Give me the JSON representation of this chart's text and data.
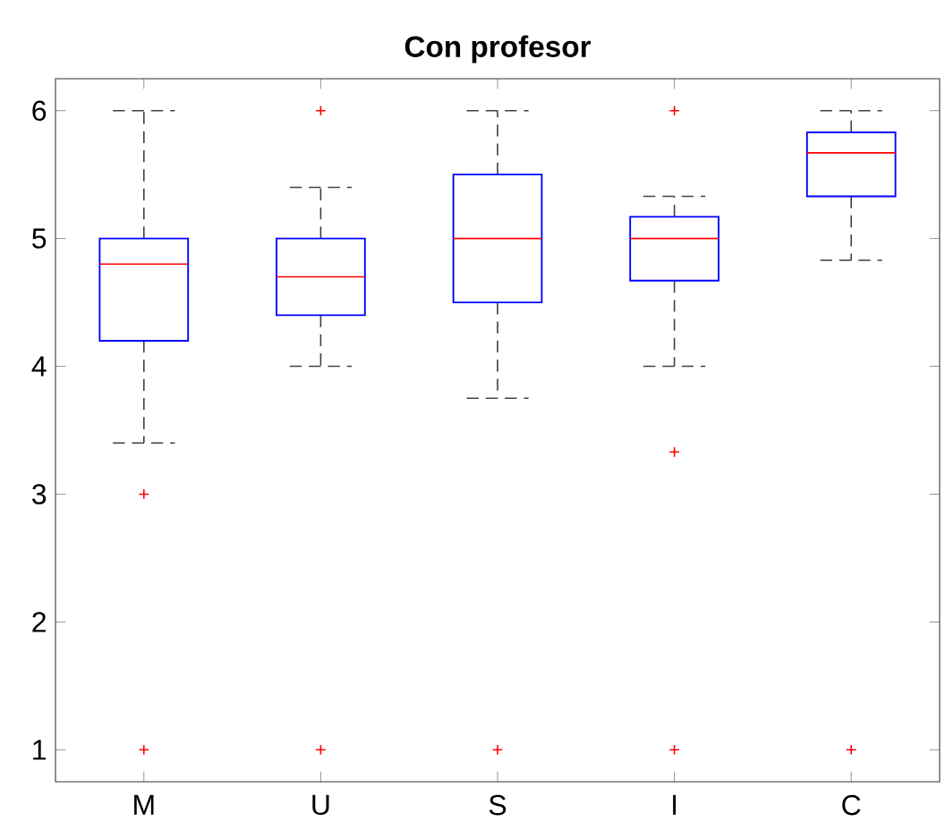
{
  "chart_data": {
    "type": "box",
    "title": "Con profesor",
    "categories": [
      "M",
      "U",
      "S",
      "I",
      "C"
    ],
    "color": "#0000ff",
    "boxes": [
      {
        "low": 3.4,
        "q1": 4.2,
        "median": 4.8,
        "q3": 5,
        "high": 6,
        "outliers": [
          3,
          1
        ]
      },
      {
        "low": 4,
        "q1": 4.4,
        "median": 4.7,
        "q3": 5,
        "high": 5.4,
        "outliers": [
          6,
          1
        ]
      },
      {
        "low": 3.75,
        "q1": 4.5,
        "median": 5,
        "q3": 5.5,
        "high": 6,
        "outliers": [
          1
        ]
      },
      {
        "low": 4,
        "q1": 4.67,
        "median": 5,
        "q3": 5.17,
        "high": 5.33,
        "outliers": [
          6,
          3.33,
          1
        ]
      },
      {
        "low": 4.83,
        "q1": 5.33,
        "median": 5.67,
        "q3": 5.83,
        "high": 6,
        "outliers": [
          1
        ]
      }
    ],
    "ylim": [
      0.75,
      6.25
    ],
    "yticks": [
      1,
      2,
      3,
      4,
      5,
      6
    ]
  }
}
